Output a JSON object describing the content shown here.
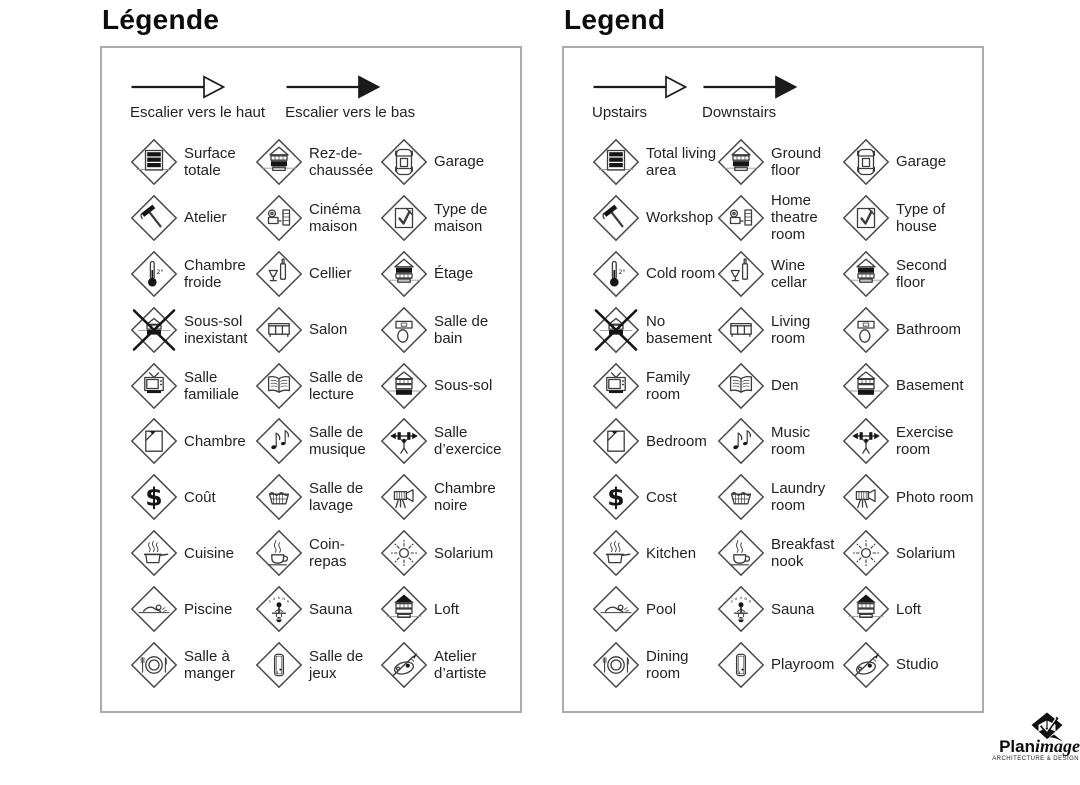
{
  "panels": [
    {
      "id": "french",
      "title": "Légende",
      "arrows": [
        {
          "label": "Escalier vers le haut",
          "style": "hollow"
        },
        {
          "label": "Escalier vers le bas",
          "style": "filled"
        }
      ],
      "items": [
        {
          "icon": "total-living-area",
          "label": "Surface totale"
        },
        {
          "icon": "ground-floor",
          "label": "Rez-de-chaussée"
        },
        {
          "icon": "garage",
          "label": "Garage"
        },
        {
          "icon": "workshop",
          "label": "Atelier"
        },
        {
          "icon": "home-theatre",
          "label": "Cinéma maison"
        },
        {
          "icon": "type-of-house",
          "label": "Type de maison"
        },
        {
          "icon": "cold-room",
          "label": "Chambre froide"
        },
        {
          "icon": "wine-cellar",
          "label": "Cellier"
        },
        {
          "icon": "second-floor",
          "label": "Étage"
        },
        {
          "icon": "no-basement",
          "label": "Sous-sol inexistant"
        },
        {
          "icon": "living-room",
          "label": "Salon"
        },
        {
          "icon": "bathroom",
          "label": "Salle de bain"
        },
        {
          "icon": "family-room",
          "label": "Salle familiale"
        },
        {
          "icon": "den",
          "label": "Salle de lecture"
        },
        {
          "icon": "basement",
          "label": "Sous-sol"
        },
        {
          "icon": "bedroom",
          "label": "Chambre"
        },
        {
          "icon": "music-room",
          "label": "Salle de musique"
        },
        {
          "icon": "exercise-room",
          "label": "Salle d’exercice"
        },
        {
          "icon": "cost",
          "label": "Coût"
        },
        {
          "icon": "laundry-room",
          "label": "Salle de lavage"
        },
        {
          "icon": "photo-room",
          "label": "Chambre noire"
        },
        {
          "icon": "kitchen",
          "label": "Cuisine"
        },
        {
          "icon": "breakfast-nook",
          "label": "Coin-repas"
        },
        {
          "icon": "solarium",
          "label": "Solarium"
        },
        {
          "icon": "pool",
          "label": "Piscine"
        },
        {
          "icon": "sauna",
          "label": "Sauna"
        },
        {
          "icon": "loft",
          "label": "Loft"
        },
        {
          "icon": "dining-room",
          "label": "Salle à manger"
        },
        {
          "icon": "playroom",
          "label": "Salle de jeux"
        },
        {
          "icon": "studio",
          "label": "Atelier d’artiste"
        }
      ]
    },
    {
      "id": "english",
      "title": "Legend",
      "arrows": [
        {
          "label": "Upstairs",
          "style": "hollow"
        },
        {
          "label": "Downstairs",
          "style": "filled"
        }
      ],
      "items": [
        {
          "icon": "total-living-area",
          "label": "Total living area"
        },
        {
          "icon": "ground-floor",
          "label": "Ground floor"
        },
        {
          "icon": "garage",
          "label": "Garage"
        },
        {
          "icon": "workshop",
          "label": "Workshop"
        },
        {
          "icon": "home-theatre",
          "label": "Home theatre room"
        },
        {
          "icon": "type-of-house",
          "label": "Type of house"
        },
        {
          "icon": "cold-room",
          "label": "Cold room"
        },
        {
          "icon": "wine-cellar",
          "label": "Wine cellar"
        },
        {
          "icon": "second-floor",
          "label": "Second floor"
        },
        {
          "icon": "no-basement",
          "label": "No basement"
        },
        {
          "icon": "living-room",
          "label": "Living room"
        },
        {
          "icon": "bathroom",
          "label": "Bathroom"
        },
        {
          "icon": "family-room",
          "label": "Family room"
        },
        {
          "icon": "den",
          "label": "Den"
        },
        {
          "icon": "basement",
          "label": "Basement"
        },
        {
          "icon": "bedroom",
          "label": "Bedroom"
        },
        {
          "icon": "music-room",
          "label": "Music room"
        },
        {
          "icon": "exercise-room",
          "label": "Exercise room"
        },
        {
          "icon": "cost",
          "label": "Cost"
        },
        {
          "icon": "laundry-room",
          "label": "Laundry room"
        },
        {
          "icon": "photo-room",
          "label": "Photo room"
        },
        {
          "icon": "kitchen",
          "label": "Kitchen"
        },
        {
          "icon": "breakfast-nook",
          "label": "Breakfast nook"
        },
        {
          "icon": "solarium",
          "label": "Solarium"
        },
        {
          "icon": "pool",
          "label": "Pool"
        },
        {
          "icon": "sauna",
          "label": "Sauna"
        },
        {
          "icon": "loft",
          "label": "Loft"
        },
        {
          "icon": "dining-room",
          "label": "Dining room"
        },
        {
          "icon": "playroom",
          "label": "Playroom"
        },
        {
          "icon": "studio",
          "label": "Studio"
        }
      ]
    }
  ],
  "logo": {
    "brand_bold": "Plan",
    "brand_italic": "image",
    "tagline": "ARCHITECTURE & DESIGN"
  },
  "colors": {
    "ink": "#231f20",
    "icon_stroke": "#3c3c3c",
    "panel_border": "#a9abae",
    "background": "#ffffff"
  }
}
